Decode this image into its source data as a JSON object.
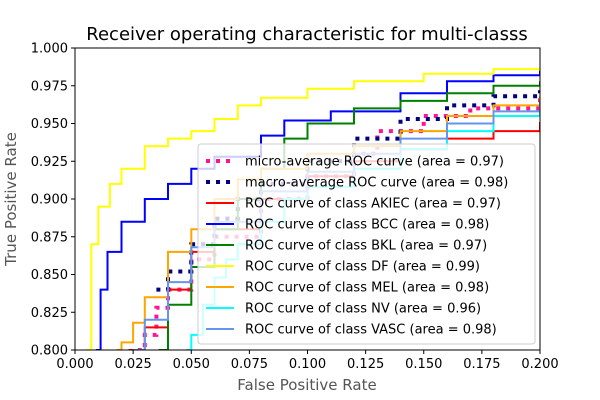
{
  "chart_data": {
    "type": "line",
    "title": "Receiver operating characteristic for multi-classs",
    "xlabel": "False Positive Rate",
    "ylabel": "True Positive Rate",
    "xlim": [
      0.0,
      0.2
    ],
    "ylim": [
      0.8,
      1.0
    ],
    "xticks": [
      "0.000",
      "0.025",
      "0.050",
      "0.075",
      "0.100",
      "0.125",
      "0.150",
      "0.175",
      "0.200"
    ],
    "yticks": [
      "0.800",
      "0.825",
      "0.850",
      "0.875",
      "0.900",
      "0.925",
      "0.950",
      "0.975",
      "1.000"
    ],
    "legend_position": "lower-right",
    "grid": false,
    "series": [
      {
        "name": "micro-average ROC curve (area = 0.97)",
        "color": "#ff1493",
        "style": "dotted",
        "x": [
          0.027,
          0.03,
          0.035,
          0.04,
          0.05,
          0.06,
          0.08,
          0.1,
          0.12,
          0.13,
          0.15,
          0.17,
          0.2
        ],
        "y": [
          0.8,
          0.81,
          0.828,
          0.84,
          0.86,
          0.875,
          0.9,
          0.915,
          0.93,
          0.945,
          0.955,
          0.96,
          0.968
        ]
      },
      {
        "name": "macro-average ROC curve (area = 0.98)",
        "color": "#000080",
        "style": "dotted",
        "x": [
          0.035,
          0.04,
          0.05,
          0.06,
          0.07,
          0.08,
          0.1,
          0.12,
          0.14,
          0.16,
          0.18,
          0.2
        ],
        "y": [
          0.84,
          0.852,
          0.87,
          0.887,
          0.9,
          0.91,
          0.925,
          0.94,
          0.953,
          0.962,
          0.968,
          0.972
        ]
      },
      {
        "name": "ROC curve of class AKIEC (area = 0.97)",
        "color": "#ff0000",
        "style": "solid",
        "x": [
          0.023,
          0.03,
          0.04,
          0.05,
          0.06,
          0.08,
          0.1,
          0.12,
          0.14,
          0.16,
          0.18,
          0.2
        ],
        "y": [
          0.8,
          0.815,
          0.84,
          0.865,
          0.88,
          0.9,
          0.915,
          0.925,
          0.933,
          0.94,
          0.945,
          0.951
        ]
      },
      {
        "name": "ROC curve of class BCC (area = 0.98)",
        "color": "#0000ff",
        "style": "solid",
        "x": [
          0.009,
          0.011,
          0.014,
          0.02,
          0.03,
          0.04,
          0.05,
          0.06,
          0.08,
          0.09,
          0.11,
          0.14,
          0.16,
          0.18,
          0.2
        ],
        "y": [
          0.8,
          0.84,
          0.865,
          0.885,
          0.9,
          0.91,
          0.92,
          0.928,
          0.942,
          0.952,
          0.958,
          0.97,
          0.978,
          0.982,
          0.985
        ]
      },
      {
        "name": "ROC curve of class BKL (area = 0.97)",
        "color": "#008000",
        "style": "solid",
        "x": [
          0.036,
          0.04,
          0.05,
          0.06,
          0.07,
          0.08,
          0.09,
          0.1,
          0.12,
          0.14,
          0.16,
          0.18,
          0.2
        ],
        "y": [
          0.8,
          0.83,
          0.855,
          0.88,
          0.9,
          0.92,
          0.94,
          0.95,
          0.96,
          0.965,
          0.97,
          0.975,
          0.978
        ]
      },
      {
        "name": "ROC curve of class DF (area = 0.99)",
        "color": "#ffff00",
        "style": "solid",
        "x": [
          0.005,
          0.007,
          0.01,
          0.015,
          0.02,
          0.03,
          0.04,
          0.05,
          0.06,
          0.07,
          0.08,
          0.1,
          0.12,
          0.15,
          0.18,
          0.2
        ],
        "y": [
          0.8,
          0.87,
          0.895,
          0.91,
          0.92,
          0.935,
          0.94,
          0.945,
          0.953,
          0.962,
          0.967,
          0.973,
          0.978,
          0.983,
          0.986,
          0.987
        ]
      },
      {
        "name": "ROC curve of class MEL (area = 0.98)",
        "color": "#ffa500",
        "style": "solid",
        "x": [
          0.018,
          0.02,
          0.025,
          0.03,
          0.04,
          0.05,
          0.06,
          0.07,
          0.08,
          0.1,
          0.12,
          0.14,
          0.16,
          0.18,
          0.2
        ],
        "y": [
          0.8,
          0.805,
          0.818,
          0.835,
          0.865,
          0.88,
          0.9,
          0.913,
          0.92,
          0.93,
          0.935,
          0.945,
          0.955,
          0.962,
          0.968
        ]
      },
      {
        "name": "ROC curve of class NV (area = 0.96)",
        "color": "#00ffff",
        "style": "solid",
        "x": [
          0.048,
          0.05,
          0.055,
          0.06,
          0.065,
          0.07,
          0.08,
          0.09,
          0.1,
          0.12,
          0.14,
          0.16,
          0.18,
          0.2
        ],
        "y": [
          0.8,
          0.81,
          0.83,
          0.848,
          0.86,
          0.87,
          0.885,
          0.9,
          0.908,
          0.92,
          0.933,
          0.945,
          0.955,
          0.965
        ]
      },
      {
        "name": "ROC curve of class VASC (area = 0.98)",
        "color": "#6495ed",
        "style": "solid",
        "x": [
          0.025,
          0.03,
          0.04,
          0.05,
          0.06,
          0.08,
          0.1,
          0.12,
          0.14,
          0.16,
          0.18,
          0.2
        ],
        "y": [
          0.8,
          0.82,
          0.845,
          0.868,
          0.885,
          0.905,
          0.918,
          0.93,
          0.94,
          0.95,
          0.958,
          0.965
        ]
      }
    ]
  }
}
